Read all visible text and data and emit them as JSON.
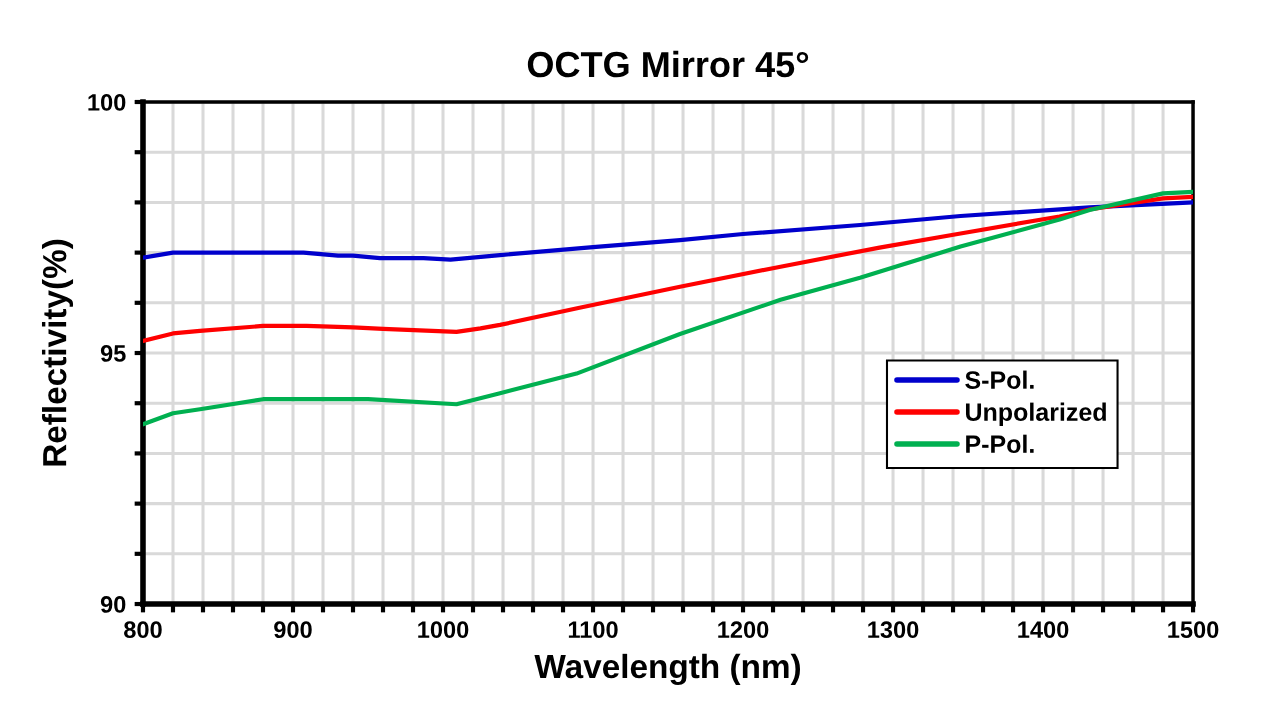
{
  "chart_data": {
    "type": "line",
    "title": "OCTG Mirror 45°",
    "xlabel": "Wavelength (nm)",
    "ylabel": "Reflectivity(%)",
    "series": [
      {
        "name": "S-Pol.",
        "color": "#0000cc",
        "x": [
          800,
          820,
          907,
          930,
          940,
          958,
          987,
          1005,
          1038,
          1100,
          1158,
          1200,
          1278,
          1345,
          1431,
          1500
        ],
        "values": [
          96.9,
          97.0,
          97.0,
          96.94,
          96.94,
          96.89,
          96.89,
          96.86,
          96.95,
          97.11,
          97.25,
          97.37,
          97.55,
          97.73,
          97.9,
          98.0
        ]
      },
      {
        "name": "Unpolarized",
        "color": "#ff0000",
        "x": [
          800,
          820,
          838,
          880,
          909,
          940,
          960,
          1009,
          1025,
          1038,
          1091,
          1158,
          1225,
          1291,
          1345,
          1411,
          1431,
          1480,
          1500
        ],
        "values": [
          95.24,
          95.39,
          95.44,
          95.54,
          95.54,
          95.51,
          95.48,
          95.42,
          95.49,
          95.56,
          95.9,
          96.32,
          96.72,
          97.1,
          97.38,
          97.72,
          97.86,
          98.08,
          98.11
        ]
      },
      {
        "name": "P-Pol.",
        "color": "#00b050",
        "x": [
          800,
          820,
          838,
          880,
          950,
          1009,
          1038,
          1089,
          1158,
          1225,
          1278,
          1345,
          1411,
          1431,
          1480,
          1500
        ],
        "values": [
          93.58,
          93.8,
          93.88,
          94.08,
          94.08,
          93.98,
          94.2,
          94.59,
          95.38,
          96.06,
          96.5,
          97.12,
          97.66,
          97.85,
          98.18,
          98.21
        ]
      }
    ],
    "xlim": [
      800,
      1500
    ],
    "xticks": [
      800,
      {
        "value": 820,
        "label": null
      },
      {
        "value": 840,
        "label": null
      },
      {
        "value": 860,
        "label": null
      },
      {
        "value": 880,
        "label": null
      },
      900,
      {
        "value": 920,
        "label": null
      },
      {
        "value": 940,
        "label": null
      },
      {
        "value": 960,
        "label": null
      },
      {
        "value": 980,
        "label": null
      },
      1000,
      {
        "value": 1020,
        "label": null
      },
      {
        "value": 1040,
        "label": null
      },
      {
        "value": 1060,
        "label": null
      },
      {
        "value": 1080,
        "label": null
      },
      1100,
      {
        "value": 1120,
        "label": null
      },
      {
        "value": 1140,
        "label": null
      },
      {
        "value": 1160,
        "label": null
      },
      {
        "value": 1180,
        "label": null
      },
      1200,
      {
        "value": 1220,
        "label": null
      },
      {
        "value": 1240,
        "label": null
      },
      {
        "value": 1260,
        "label": null
      },
      {
        "value": 1280,
        "label": null
      },
      1300,
      {
        "value": 1320,
        "label": null
      },
      {
        "value": 1340,
        "label": null
      },
      {
        "value": 1360,
        "label": null
      },
      {
        "value": 1380,
        "label": null
      },
      1400,
      {
        "value": 1420,
        "label": null
      },
      {
        "value": 1440,
        "label": null
      },
      {
        "value": 1460,
        "label": null
      },
      {
        "value": 1480,
        "label": null
      },
      1500
    ],
    "ylim": [
      90,
      100
    ],
    "yticks": [
      90,
      {
        "value": 91,
        "label": null
      },
      {
        "value": 92,
        "label": null
      },
      {
        "value": 93,
        "label": null
      },
      {
        "value": 94,
        "label": null
      },
      95,
      {
        "value": 96,
        "label": null
      },
      {
        "value": 97,
        "label": null
      },
      {
        "value": 98,
        "label": null
      },
      {
        "value": 99,
        "label": null
      },
      100
    ],
    "grid": true,
    "legend": "right",
    "marker": "none",
    "line_style": "solid"
  }
}
